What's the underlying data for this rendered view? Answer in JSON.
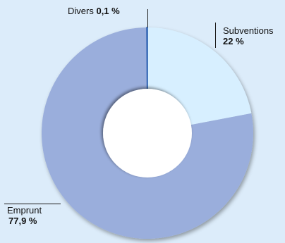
{
  "chart_data": {
    "type": "pie",
    "donut": true,
    "slices": [
      {
        "label": "Subventions",
        "value_text": "22 %",
        "value": 22.0,
        "color": "#d7efff"
      },
      {
        "label": "Emprunt",
        "value_text": "77,9 %",
        "value": 77.9,
        "color": "#9aaedc"
      },
      {
        "label": "Divers",
        "value_text": "0,1 %",
        "value": 0.1,
        "color": "#2b5fb0"
      }
    ]
  },
  "colors": {
    "background": "#dcecfa",
    "hole": "#ffffff"
  }
}
